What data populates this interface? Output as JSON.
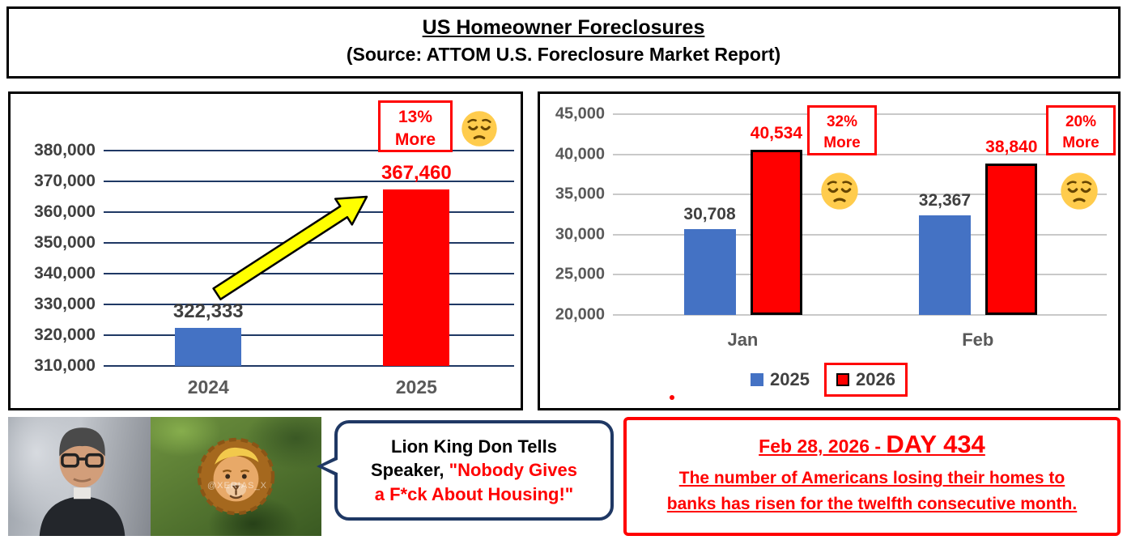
{
  "header": {
    "title": "US Homeowner Foreclosures",
    "subtitle": "(Source: ATTOM U.S. Foreclosure Market Report)"
  },
  "colors": {
    "bar_blue": "#4472C4",
    "bar_red": "#FF0000",
    "accent_red": "#FF0000",
    "left_grid": "#1F3864",
    "right_grid": "#C9C9C9",
    "label_gray": "#404040",
    "bubble_border": "#1F3864"
  },
  "chart_data": [
    {
      "type": "bar",
      "categories": [
        "2024",
        "2025"
      ],
      "values": [
        322333,
        367460
      ],
      "value_labels": [
        "322,333",
        "367,460"
      ],
      "bar_colors": [
        "#4472C4",
        "#FF0000"
      ],
      "value_label_colors": [
        "#404040",
        "#FF0000"
      ],
      "ylim": [
        310000,
        380000
      ],
      "ytick_step": 10000,
      "yticks": [
        "310,000",
        "320,000",
        "330,000",
        "340,000",
        "350,000",
        "360,000",
        "370,000",
        "380,000"
      ],
      "grid": true,
      "annotation": {
        "line1": "13%",
        "line2": "More"
      }
    },
    {
      "type": "bar",
      "categories": [
        "Jan",
        "Feb"
      ],
      "series": [
        {
          "name": "2025",
          "color": "#4472C4",
          "values": [
            30708,
            32367
          ],
          "value_labels": [
            "30,708",
            "32,367"
          ],
          "value_label_color": "#404040"
        },
        {
          "name": "2026",
          "color": "#FF0000",
          "border_color": "#000000",
          "values": [
            40534,
            38840
          ],
          "value_labels": [
            "40,534",
            "38,840"
          ],
          "value_label_color": "#FF0000"
        }
      ],
      "ylim": [
        20000,
        45000
      ],
      "ytick_step": 5000,
      "yticks": [
        "20,000",
        "25,000",
        "30,000",
        "35,000",
        "40,000",
        "45,000"
      ],
      "grid": true,
      "legend": [
        "2025",
        "2026"
      ],
      "legend_position": "bottom",
      "annotations": [
        {
          "line1": "32%",
          "line2": "More"
        },
        {
          "line1": "20%",
          "line2": "More"
        }
      ]
    }
  ],
  "meme": {
    "watermark": "@XERIAS_X",
    "speech": {
      "line1": "Lion King Don Tells",
      "line2_black": "Speaker,",
      "line2_red": "\"Nobody Gives",
      "line3_red": "a F*ck About Housing!\""
    }
  },
  "callout": {
    "date_prefix": "Feb 28, 2026 - ",
    "day_label": "DAY 434",
    "body_line1": "The number of Americans losing their homes to",
    "body_line2": "banks has risen for the twelfth consecutive month."
  }
}
